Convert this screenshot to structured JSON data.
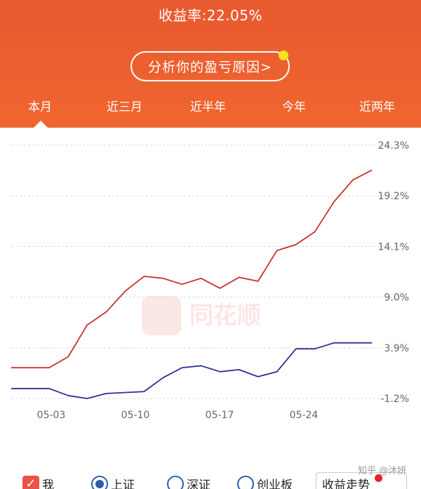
{
  "header": {
    "yield_label": "收益率:22.05%",
    "analyze_button": "分析你的盈亏原因>"
  },
  "tabs": [
    {
      "label": "本月",
      "active": true
    },
    {
      "label": "近三月",
      "active": false
    },
    {
      "label": "近半年",
      "active": false
    },
    {
      "label": "今年",
      "active": false
    },
    {
      "label": "近两年",
      "active": false
    }
  ],
  "chart_data": {
    "type": "line",
    "x_ticks": [
      "05-03",
      "05-10",
      "05-17",
      "05-24"
    ],
    "y_ticks": [
      "24.3%",
      "19.2%",
      "14.1%",
      "9.0%",
      "3.9%",
      "-1.2%"
    ],
    "ylim": [
      -1.2,
      24.3
    ],
    "grid": true,
    "series": [
      {
        "name": "我",
        "color": "#c8302b",
        "x": [
          0,
          2,
          4,
          6,
          8,
          10,
          12,
          14,
          16,
          18,
          20,
          22,
          24,
          26,
          28,
          30,
          32,
          34,
          36,
          38
        ],
        "values": [
          1.9,
          1.9,
          1.9,
          3.0,
          6.2,
          7.5,
          9.6,
          11.1,
          10.9,
          10.3,
          10.9,
          9.9,
          11.0,
          10.6,
          13.7,
          14.3,
          15.6,
          18.6,
          20.8,
          21.8
        ]
      },
      {
        "name": "上证",
        "color": "#2b2f96",
        "x": [
          0,
          2,
          4,
          6,
          8,
          10,
          12,
          14,
          16,
          18,
          20,
          22,
          24,
          26,
          28,
          30,
          32,
          34,
          36,
          38
        ],
        "values": [
          -0.2,
          -0.2,
          -0.2,
          -0.9,
          -1.2,
          -0.7,
          -0.6,
          -0.5,
          0.9,
          1.9,
          2.1,
          1.5,
          1.7,
          1.0,
          1.5,
          3.8,
          3.8,
          4.4,
          4.4,
          4.4
        ]
      }
    ]
  },
  "watermark_text": "同花顺",
  "legend": {
    "mine": "我",
    "shanghai": "上证",
    "shenzhen": "深证",
    "chinext": "创业板",
    "trend_button": "收益走势"
  },
  "zhihu_mark": "知乎 @沐妍"
}
